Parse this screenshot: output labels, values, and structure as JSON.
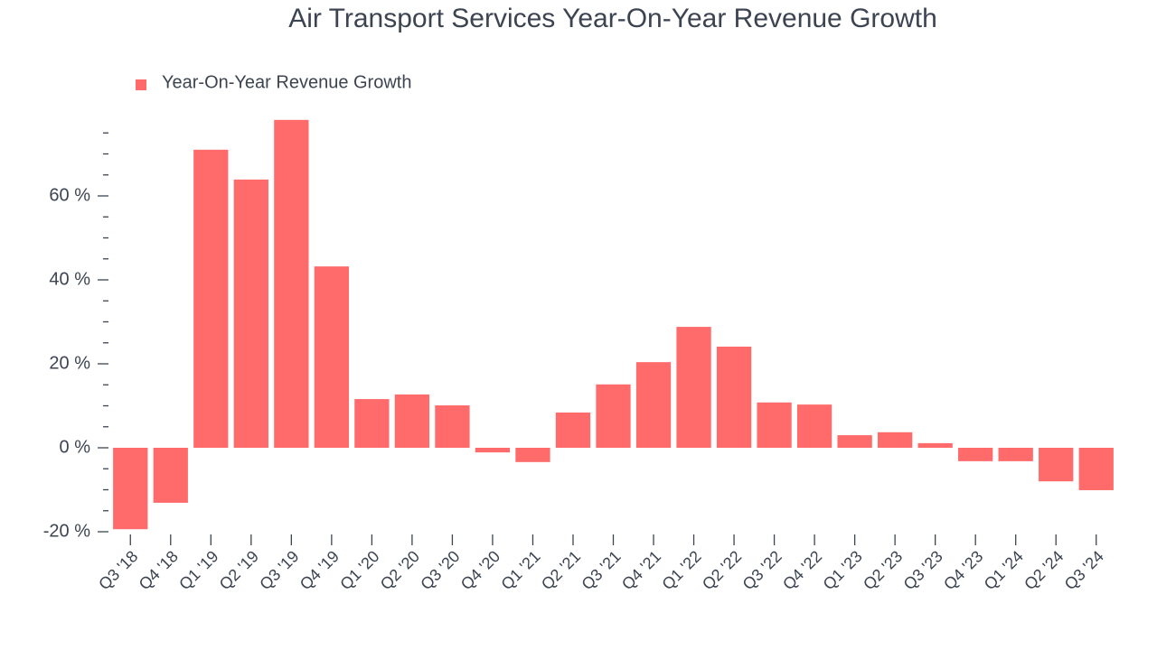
{
  "chart_data": {
    "type": "bar",
    "title": "Air Transport Services Year-On-Year Revenue Growth",
    "categories": [
      "Q3 '18",
      "Q4 '18",
      "Q1 '19",
      "Q2 '19",
      "Q3 '19",
      "Q4 '19",
      "Q1 '20",
      "Q2 '20",
      "Q3 '20",
      "Q4 '20",
      "Q1 '21",
      "Q2 '21",
      "Q3 '21",
      "Q4 '21",
      "Q1 '22",
      "Q2 '22",
      "Q3 '22",
      "Q4 '22",
      "Q1 '23",
      "Q2 '23",
      "Q3 '23",
      "Q4 '23",
      "Q1 '24",
      "Q2 '24",
      "Q3 '24"
    ],
    "series": [
      {
        "name": "Year-On-Year Revenue Growth",
        "color": "#ff6b6b",
        "values": [
          -19.4,
          -13.1,
          71.0,
          63.9,
          78.1,
          43.2,
          11.6,
          12.7,
          10.1,
          -1.1,
          -3.4,
          8.4,
          15.1,
          20.4,
          28.8,
          24.1,
          10.8,
          10.3,
          3.0,
          3.7,
          1.1,
          -3.2,
          -3.2,
          -8.0,
          -10.1
        ]
      }
    ],
    "ylim": [
      -20,
      80
    ],
    "yticks": [
      {
        "value": -20,
        "label": "-20 %"
      },
      {
        "value": 0,
        "label": "0 %"
      },
      {
        "value": 20,
        "label": "20 %"
      },
      {
        "value": 40,
        "label": "40 %"
      },
      {
        "value": 60,
        "label": "60 %"
      }
    ],
    "minor_yticks": [
      -15,
      -10,
      -5,
      5,
      10,
      15,
      25,
      30,
      35,
      45,
      50,
      55,
      65,
      70,
      75
    ],
    "legend": "top-left",
    "grid": false
  }
}
